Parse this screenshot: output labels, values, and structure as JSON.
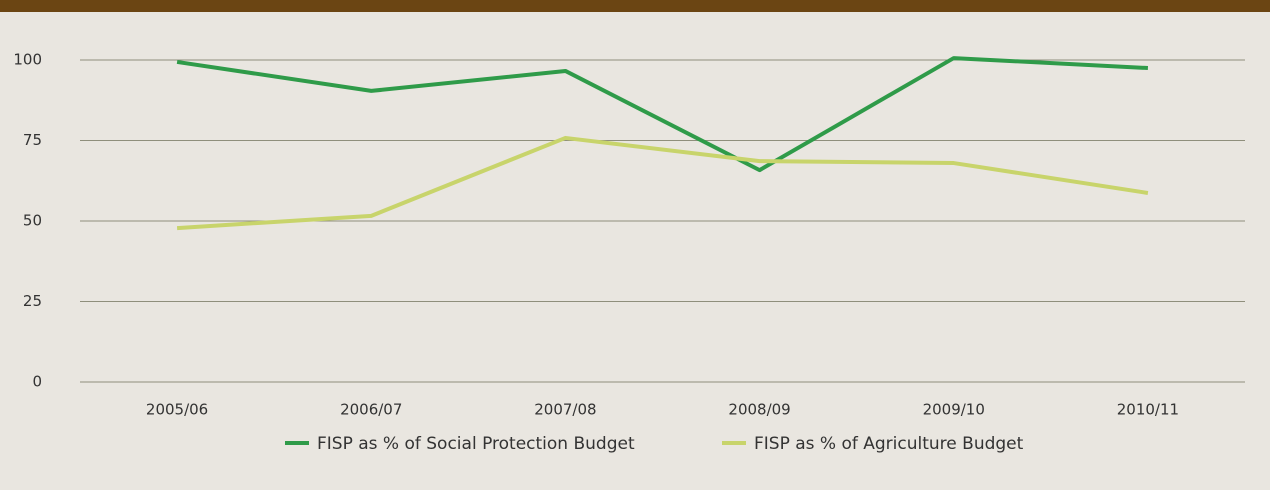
{
  "chart_data": {
    "type": "line",
    "categories": [
      "2005/06",
      "2006/07",
      "2007/08",
      "2008/09",
      "2009/10",
      "2010/11"
    ],
    "series": [
      {
        "name": "FISP as % of Social Protection Budget",
        "color": "#2f9b49",
        "values": [
          99.4,
          90.4,
          96.6,
          65.8,
          100.6,
          97.5
        ]
      },
      {
        "name": "FISP as % of Agriculture Budget",
        "color": "#c8d46b",
        "values": [
          47.8,
          51.6,
          75.8,
          68.6,
          68.0,
          58.7
        ]
      }
    ],
    "ylim": [
      0,
      100
    ],
    "yticks": [
      0,
      25,
      50,
      75,
      100
    ],
    "grid": true
  }
}
